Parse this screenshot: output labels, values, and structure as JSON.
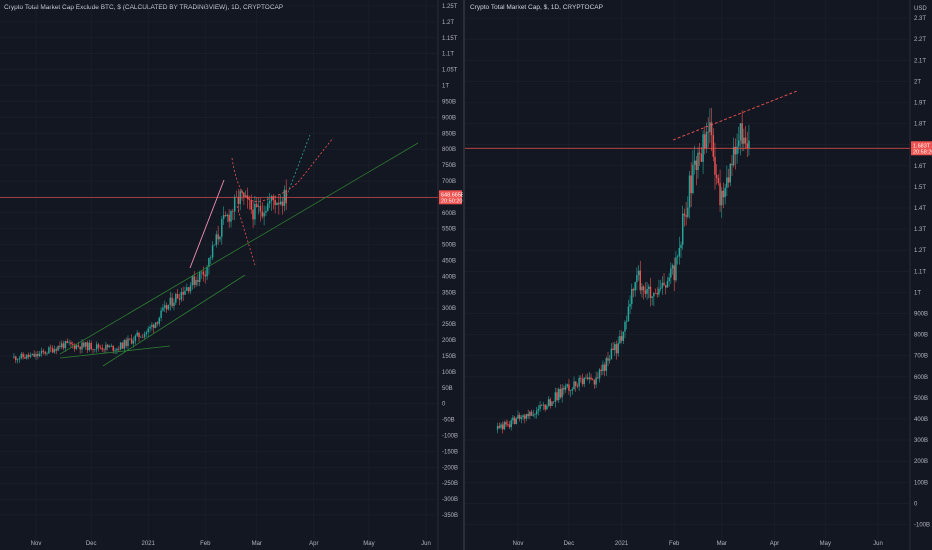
{
  "colors": {
    "background": "#131722",
    "grid": "#1e222d",
    "up": "#26a69a",
    "down": "#ef5350",
    "price_line": "#ef5350",
    "trend_green": "#2e7d32",
    "trend_red": "#ef5350",
    "trend_pink": "#f48fb1"
  },
  "chart_data": [
    {
      "type": "candlestick",
      "title": "Crypto Total Market Cap Exclude BTC, $ (CALCULATED BY TRADINGVIEW), 1D, CRYPTOCAP",
      "y_tick_labels": [
        "1.25T",
        "1.2T",
        "1.15T",
        "1.1T",
        "1.05T",
        "1T",
        "950B",
        "900B",
        "850B",
        "800B",
        "750B",
        "700B",
        "650B",
        "600B",
        "550B",
        "500B",
        "450B",
        "400B",
        "350B",
        "300B",
        "250B",
        "200B",
        "150B",
        "100B",
        "50B",
        "0",
        "-50B",
        "-100B",
        "-150B",
        "-200B",
        "-250B",
        "-300B",
        "-350B"
      ],
      "x_tick_labels": [
        "Nov",
        "Dec",
        "2021",
        "Feb",
        "Mar",
        "Apr",
        "May",
        "Jun"
      ],
      "price_label": [
        "648.665B",
        "20:50:20"
      ],
      "last_value": 648.665,
      "unit": "B",
      "ylim": [
        -375,
        1250
      ],
      "grid": true,
      "series": [
        {
          "x": [
            "2020-10-20",
            "2020-11-01",
            "2020-11-15",
            "2020-12-01",
            "2020-12-15",
            "2021-01-01",
            "2021-01-15",
            "2021-02-01",
            "2021-02-10",
            "2021-02-20",
            "2021-02-28",
            "2021-03-10",
            "2021-03-17"
          ],
          "y": [
            145,
            150,
            185,
            180,
            175,
            230,
            330,
            420,
            560,
            650,
            600,
            640,
            648.665
          ]
        }
      ]
    },
    {
      "type": "candlestick",
      "title": "Crypto Total Market Cap, $, 1D, CRYPTOCAP",
      "axis_unit": "USD",
      "y_tick_labels": [
        "2.3T",
        "2.2T",
        "2.1T",
        "2T",
        "1.9T",
        "1.8T",
        "1.7T",
        "1.6T",
        "1.5T",
        "1.4T",
        "1.3T",
        "1.2T",
        "1.1T",
        "1T",
        "900B",
        "800B",
        "700B",
        "600B",
        "500B",
        "400B",
        "300B",
        "200B",
        "100B",
        "0",
        "-100B"
      ],
      "x_tick_labels": [
        "Nov",
        "Dec",
        "2021",
        "Feb",
        "Mar",
        "Apr",
        "May",
        "Jun"
      ],
      "price_label": [
        "1.683T",
        "20:58:20"
      ],
      "last_value": 1683,
      "unit": "B",
      "ylim": [
        -150,
        2400
      ],
      "grid": true,
      "series": [
        {
          "x": [
            "2020-10-20",
            "2020-11-01",
            "2020-11-15",
            "2020-12-01",
            "2020-12-15",
            "2021-01-01",
            "2021-01-10",
            "2021-01-20",
            "2021-02-01",
            "2021-02-10",
            "2021-02-21",
            "2021-02-28",
            "2021-03-13",
            "2021-03-17"
          ],
          "y": [
            350,
            400,
            450,
            560,
            580,
            770,
            1080,
            960,
            1100,
            1500,
            1790,
            1430,
            1770,
            1683
          ]
        }
      ]
    }
  ]
}
